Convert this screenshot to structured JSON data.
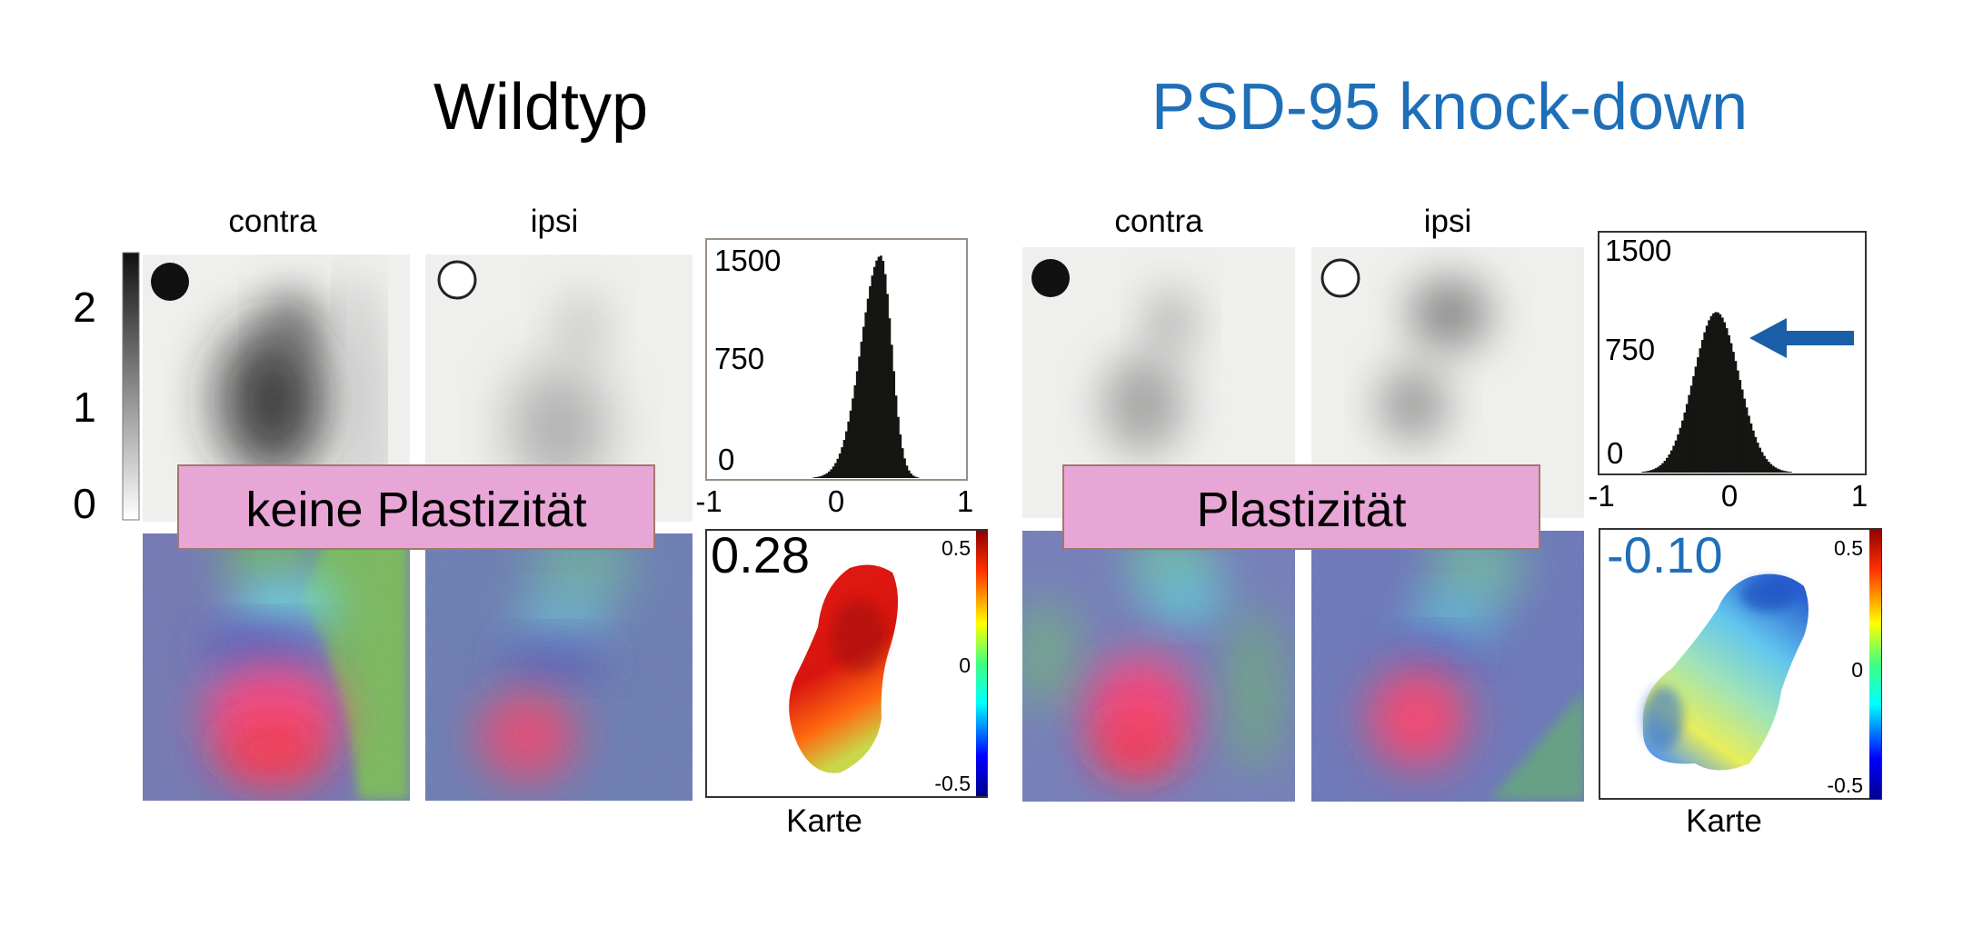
{
  "colors": {
    "wildtype_title": "#000000",
    "knockdown_title": "#1f6fb8",
    "banner_fill": "#e8a6d6",
    "banner_border": "#a2786c",
    "arrow": "#1a5ea8",
    "histogram_bar": "#151512",
    "gray_bg": "#efefed"
  },
  "icons": [
    "filled-circle-icon",
    "open-circle-icon",
    "left-arrow-icon"
  ],
  "gray_scale": {
    "ticks": [
      "2",
      "1",
      "0"
    ],
    "values": [
      2,
      1,
      0
    ]
  },
  "wildtype": {
    "title": "Wildtyp",
    "contra_label": "contra",
    "ipsi_label": "ipsi",
    "banner": "keine Plastizität",
    "map_value": "0.28",
    "map_label": "Karte",
    "histogram": {
      "type": "bar",
      "y_ticks": [
        "1500",
        "750",
        "0"
      ],
      "x_ticks": [
        "-1",
        "0",
        "1"
      ],
      "ylim": [
        0,
        1500
      ],
      "xlim": [
        -1,
        1
      ],
      "peak_x": 0.34,
      "peak_y": 1480,
      "spread": 0.12,
      "skew": "left"
    },
    "colorbar_ticks": [
      "0.5",
      "0",
      "-0.5"
    ]
  },
  "knockdown": {
    "title": "PSD-95 knock-down",
    "contra_label": "contra",
    "ipsi_label": "ipsi",
    "banner": "Plastizität",
    "map_value": "-0.10",
    "map_label": "Karte",
    "histogram": {
      "type": "bar",
      "y_ticks": [
        "1500",
        "750",
        "0"
      ],
      "x_ticks": [
        "-1",
        "0",
        "1"
      ],
      "ylim": [
        0,
        1500
      ],
      "xlim": [
        -1,
        1
      ],
      "peak_x": -0.12,
      "peak_y": 1060,
      "spread": 0.17,
      "skew": "none"
    },
    "colorbar_ticks": [
      "0.5",
      "0",
      "-0.5"
    ]
  }
}
